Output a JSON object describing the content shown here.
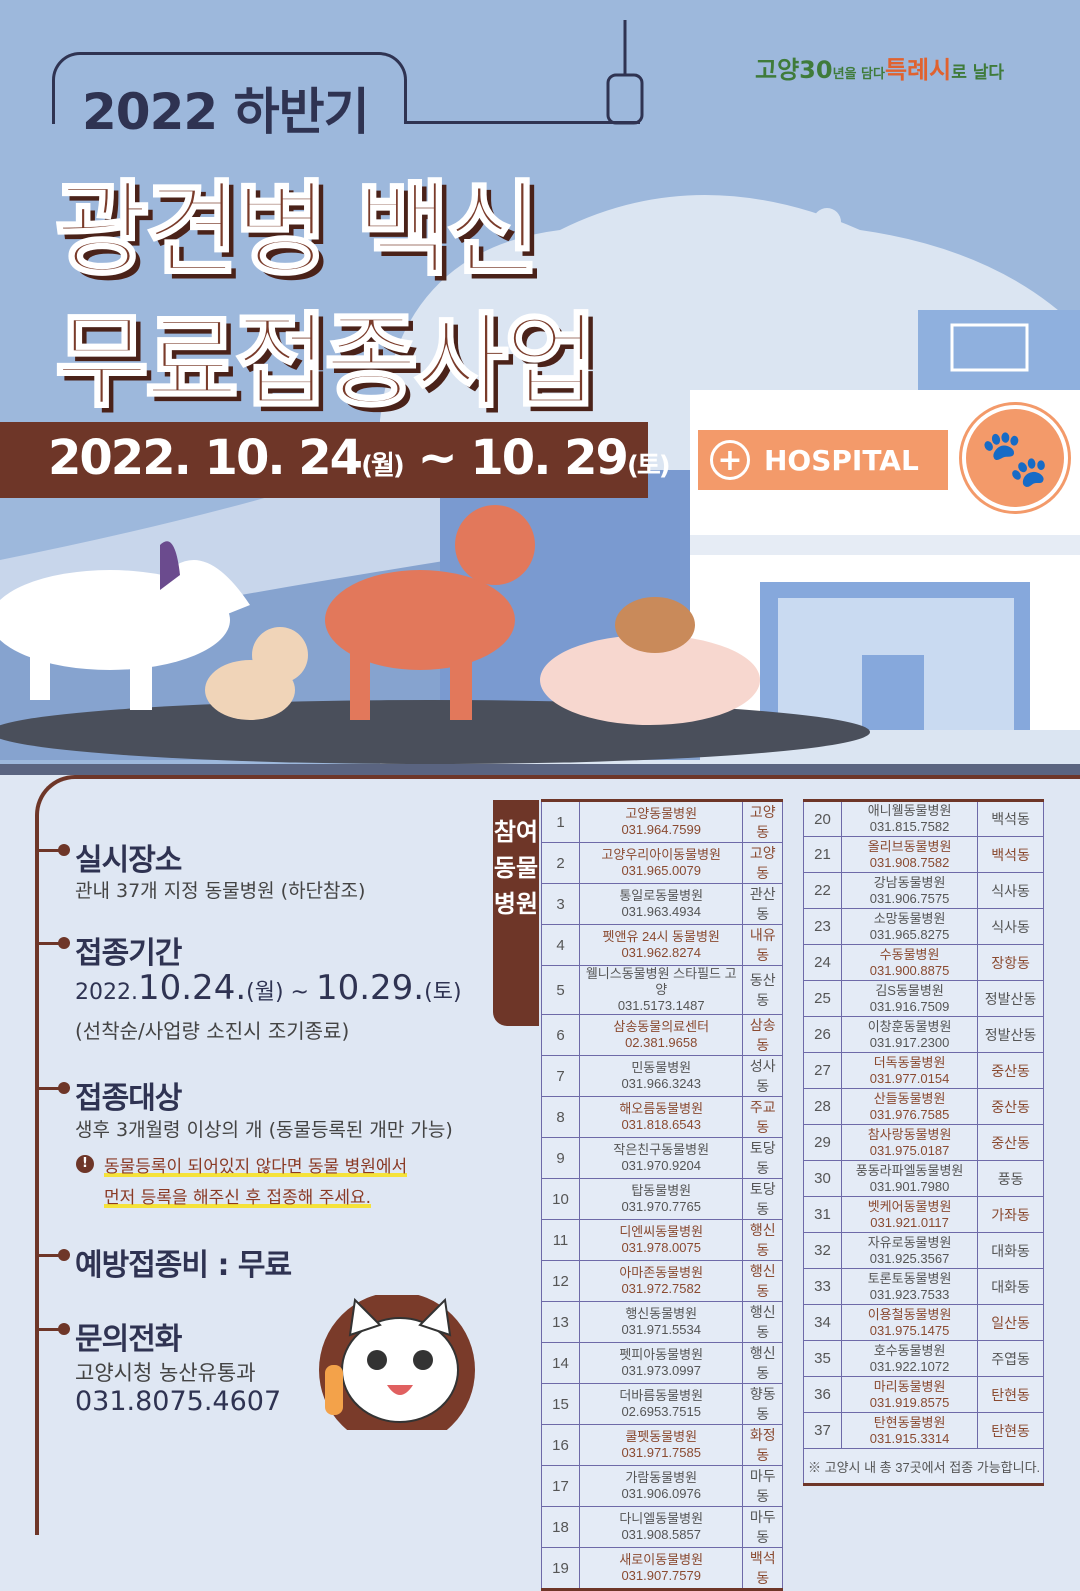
{
  "header": {
    "subtitle": "2022 하반기",
    "title_line1": "광견병 백신",
    "title_line2": "무료접종사업",
    "date_main1": "2022. 10. 24",
    "date_day1": "(월)",
    "date_sep": " ~ ",
    "date_main2": "10. 29",
    "date_day2": "(토)",
    "hospital_sign": "HOSPITAL"
  },
  "logo": {
    "part1": "고양",
    "num": "30",
    "part2": "년을 담다",
    "part3": "특례시",
    "part4": "로 날다"
  },
  "info": {
    "place_title": "실시장소",
    "place_text": "관내 37개 지정 동물병원 (하단참조)",
    "period_title": "접종기간",
    "period_year": "2022.",
    "period_d1": "10.24.",
    "period_w1": "(월)",
    "period_tilde": " ~ ",
    "period_d2": "10.29.",
    "period_w2": "(토)",
    "period_note": "(선착순/사업량 소진시 조기종료)",
    "target_title": "접종대상",
    "target_text": "생후 3개월령 이상의 개 (동물등록된 개만 가능)",
    "warn1": "동물등록이 되어있지 않다면 동물 병원에서",
    "warn2": "먼저 등록을 해주신 후 접종해 주세요.",
    "fee_title": "예방접종비 : 무료",
    "contact_title": "문의전화",
    "contact_org": "고양시청 농산유통과",
    "contact_phone": "031.8075.4607"
  },
  "table": {
    "label": "참여동물병원",
    "note": "※ 고양시 내 총 37곳에서 접종 가능합니다.",
    "rows": [
      {
        "no": "1",
        "name": "고양동물병원",
        "phone": "031.964.7599",
        "dong": "고양동",
        "hl": true
      },
      {
        "no": "2",
        "name": "고양우리아이동물병원",
        "phone": "031.965.0079",
        "dong": "고양동",
        "hl": true
      },
      {
        "no": "3",
        "name": "통일로동물병원",
        "phone": "031.963.4934",
        "dong": "관산동",
        "hl": false
      },
      {
        "no": "4",
        "name": "펫앤유 24시 동물병원",
        "phone": "031.962.8274",
        "dong": "내유동",
        "hl": true
      },
      {
        "no": "5",
        "name": "웰니스동물병원 스타필드 고양",
        "phone": "031.5173.1487",
        "dong": "동산동",
        "hl": false
      },
      {
        "no": "6",
        "name": "삼송동물의료센터",
        "phone": "02.381.9658",
        "dong": "삼송동",
        "hl": true
      },
      {
        "no": "7",
        "name": "민동물병원",
        "phone": "031.966.3243",
        "dong": "성사동",
        "hl": false
      },
      {
        "no": "8",
        "name": "해오름동물병원",
        "phone": "031.818.6543",
        "dong": "주교동",
        "hl": true
      },
      {
        "no": "9",
        "name": "작은친구동물병원",
        "phone": "031.970.9204",
        "dong": "토당동",
        "hl": false
      },
      {
        "no": "10",
        "name": "탑동물병원",
        "phone": "031.970.7765",
        "dong": "토당동",
        "hl": false
      },
      {
        "no": "11",
        "name": "디엔씨동물병원",
        "phone": "031.978.0075",
        "dong": "행신동",
        "hl": true
      },
      {
        "no": "12",
        "name": "아마존동물병원",
        "phone": "031.972.7582",
        "dong": "행신동",
        "hl": true
      },
      {
        "no": "13",
        "name": "행신동물병원",
        "phone": "031.971.5534",
        "dong": "행신동",
        "hl": false
      },
      {
        "no": "14",
        "name": "펫피아동물병원",
        "phone": "031.973.0997",
        "dong": "행신동",
        "hl": false
      },
      {
        "no": "15",
        "name": "더바름동물병원",
        "phone": "02.6953.7515",
        "dong": "향동동",
        "hl": false
      },
      {
        "no": "16",
        "name": "쿨펫동물병원",
        "phone": "031.971.7585",
        "dong": "화정동",
        "hl": true
      },
      {
        "no": "17",
        "name": "가람동물병원",
        "phone": "031.906.0976",
        "dong": "마두동",
        "hl": false
      },
      {
        "no": "18",
        "name": "다니엘동물병원",
        "phone": "031.908.5857",
        "dong": "마두동",
        "hl": false
      },
      {
        "no": "19",
        "name": "새로이동물병원",
        "phone": "031.907.7579",
        "dong": "백석동",
        "hl": true
      },
      {
        "no": "20",
        "name": "애니웰동물병원",
        "phone": "031.815.7582",
        "dong": "백석동",
        "hl": false
      },
      {
        "no": "21",
        "name": "올리브동물병원",
        "phone": "031.908.7582",
        "dong": "백석동",
        "hl": true
      },
      {
        "no": "22",
        "name": "강남동물병원",
        "phone": "031.906.7575",
        "dong": "식사동",
        "hl": false
      },
      {
        "no": "23",
        "name": "소망동물병원",
        "phone": "031.965.8275",
        "dong": "식사동",
        "hl": false
      },
      {
        "no": "24",
        "name": "수동물병원",
        "phone": "031.900.8875",
        "dong": "장항동",
        "hl": true
      },
      {
        "no": "25",
        "name": "김S동물병원",
        "phone": "031.916.7509",
        "dong": "정발산동",
        "hl": false
      },
      {
        "no": "26",
        "name": "이창훈동물병원",
        "phone": "031.917.2300",
        "dong": "정발산동",
        "hl": false
      },
      {
        "no": "27",
        "name": "더독동물병원",
        "phone": "031.977.0154",
        "dong": "중산동",
        "hl": true
      },
      {
        "no": "28",
        "name": "산들동물병원",
        "phone": "031.976.7585",
        "dong": "중산동",
        "hl": true
      },
      {
        "no": "29",
        "name": "참사랑동물병원",
        "phone": "031.975.0187",
        "dong": "중산동",
        "hl": true
      },
      {
        "no": "30",
        "name": "풍동라파엘동물병원",
        "phone": "031.901.7980",
        "dong": "풍동",
        "hl": false
      },
      {
        "no": "31",
        "name": "벳케어동물병원",
        "phone": "031.921.0117",
        "dong": "가좌동",
        "hl": true
      },
      {
        "no": "32",
        "name": "자유로동물병원",
        "phone": "031.925.3567",
        "dong": "대화동",
        "hl": false
      },
      {
        "no": "33",
        "name": "토론토동물병원",
        "phone": "031.923.7533",
        "dong": "대화동",
        "hl": false
      },
      {
        "no": "34",
        "name": "이용철동물병원",
        "phone": "031.975.1475",
        "dong": "일산동",
        "hl": true
      },
      {
        "no": "35",
        "name": "호수동물병원",
        "phone": "031.922.1072",
        "dong": "주엽동",
        "hl": false
      },
      {
        "no": "36",
        "name": "마리동물병원",
        "phone": "031.919.8575",
        "dong": "탄현동",
        "hl": true
      },
      {
        "no": "37",
        "name": "탄현동물병원",
        "phone": "031.915.3314",
        "dong": "탄현동",
        "hl": true
      }
    ]
  },
  "colors": {
    "brown": "#6e3628",
    "navy": "#2f3352",
    "sky": "#9db8dc",
    "panel": "#dfe7f3",
    "orange": "#f39a6a",
    "highlight": "#f5e23a"
  }
}
